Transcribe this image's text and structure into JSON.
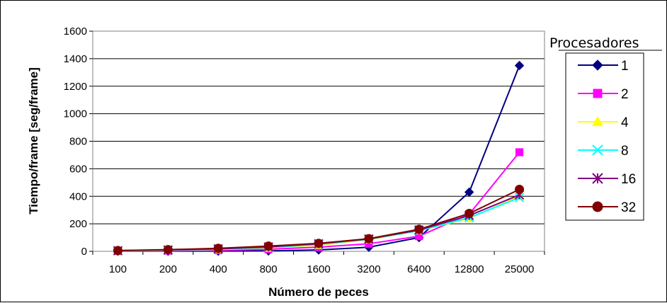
{
  "chart_data": {
    "type": "line",
    "title": "",
    "xlabel": "Número de peces",
    "ylabel": "Tiempo/frame [seg/frame]",
    "categories": [
      "100",
      "200",
      "400",
      "800",
      "1600",
      "3200",
      "6400",
      "12800",
      "25000"
    ],
    "ylim": [
      0,
      1600
    ],
    "yticks": [
      0,
      200,
      400,
      600,
      800,
      1000,
      1200,
      1400,
      1600
    ],
    "grid": true,
    "legend": {
      "title": "Procesadores",
      "position": "right"
    },
    "series": [
      {
        "name": "1",
        "color": "#000080",
        "marker": "diamond",
        "values": [
          1,
          1,
          2,
          3,
          10,
          30,
          100,
          430,
          1350
        ]
      },
      {
        "name": "2",
        "color": "#FF00FF",
        "marker": "square",
        "values": [
          2,
          4,
          8,
          15,
          30,
          55,
          110,
          270,
          720
        ]
      },
      {
        "name": "4",
        "color": "#FFFF00",
        "marker": "triangle",
        "values": [
          3,
          7,
          13,
          25,
          45,
          85,
          150,
          240,
          400
        ]
      },
      {
        "name": "8",
        "color": "#00FFFF",
        "marker": "x",
        "values": [
          4,
          8,
          15,
          28,
          50,
          88,
          150,
          245,
          390
        ]
      },
      {
        "name": "16",
        "color": "#800080",
        "marker": "star",
        "values": [
          5,
          10,
          18,
          32,
          55,
          90,
          155,
          260,
          410
        ]
      },
      {
        "name": "32",
        "color": "#800000",
        "marker": "circle",
        "values": [
          6,
          12,
          22,
          38,
          58,
          92,
          160,
          275,
          450
        ]
      }
    ]
  }
}
